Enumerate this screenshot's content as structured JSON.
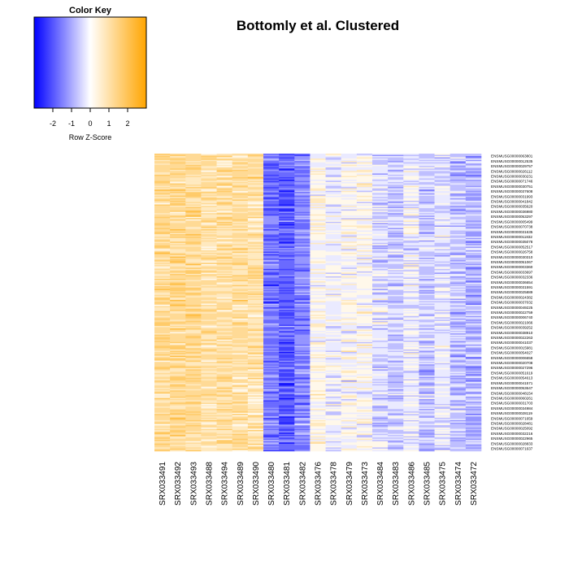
{
  "chart_data": {
    "type": "heatmap",
    "title": "Bottomly et al. Clustered",
    "color_key": {
      "title": "Color Key",
      "xlabel": "Row Z-Score",
      "range": [
        -3,
        3
      ],
      "ticks": [
        -2,
        -1,
        0,
        1,
        2
      ],
      "tick_labels": [
        "-2",
        "-1",
        "0",
        "1",
        "2"
      ],
      "colors": {
        "low": "#0000ff",
        "mid": "#ffffff",
        "high": "#ffa500"
      }
    },
    "columns": [
      "SRX033491",
      "SRX033492",
      "SRX033493",
      "SRX033488",
      "SRX033494",
      "SRX033489",
      "SRX033490",
      "SRX033480",
      "SRX033481",
      "SRX033482",
      "SRX033476",
      "SRX033478",
      "SRX033479",
      "SRX033473",
      "SRX033484",
      "SRX033483",
      "SRX033486",
      "SRX033485",
      "SRX033475",
      "SRX033474",
      "SRX033472"
    ],
    "column_mean_zscores": [
      1.2,
      1.3,
      1.2,
      1.0,
      1.1,
      1.1,
      1.0,
      -1.6,
      -1.9,
      -1.4,
      0.2,
      -0.1,
      0.1,
      0.1,
      -0.4,
      -0.6,
      -0.1,
      -0.6,
      -0.3,
      -0.7,
      -0.9
    ],
    "row_labels": [
      "ENSMUSG00000063801",
      "ENSMUSG00000012535",
      "ENSMUSG00000029757",
      "ENSMUSG00000026112",
      "ENSMUSG00000030231",
      "ENSMUSG00000071746",
      "ENSMUSG00000030751",
      "ENSMUSG00000037608",
      "ENSMUSG00000031993",
      "ENSMUSG00000041842",
      "ENSMUSG00000035620",
      "ENSMUSG00000036980",
      "ENSMUSG00000053297",
      "ENSMUSG00000005499",
      "ENSMUSG00000070738",
      "ENSMUSG00000031635",
      "ENSMUSG00000011832",
      "ENSMUSG00000035078",
      "ENSMUSG00000052517",
      "ENSMUSG00000026758",
      "ENSMUSG00000030310",
      "ENSMUSG00000051067",
      "ENSMUSG00000003360",
      "ENSMUSG00000033697",
      "ENSMUSG00000032336",
      "ENSMUSG00000036654",
      "ENSMUSG00000031591",
      "ENSMUSG00000025889",
      "ENSMUSG00000024382",
      "ENSMUSG00000037032",
      "ENSMUSG00000049225",
      "ENSMUSG00000022759",
      "ENSMUSG00000006740",
      "ENSMUSG00000021066",
      "ENSMUSG00000039252",
      "ENSMUSG00000038910",
      "ENSMUSG00000022263",
      "ENSMUSG00000041037",
      "ENSMUSG00000015981",
      "ENSMUSG00000054027",
      "ENSMUSG00000006658",
      "ENSMUSG00000020708",
      "ENSMUSG00000027296",
      "ENSMUSG00000051619",
      "ENSMUSG00000054613",
      "ENSMUSG00000041571",
      "ENSMUSG00000053647",
      "ENSMUSG00000048154",
      "ENSMUSG00000060261",
      "ENSMUSG00000031703",
      "ENSMUSG00000034984",
      "ENSMUSG00000028119",
      "ENSMUSG00000071659",
      "ENSMUSG00000028481",
      "ENSMUSG00000025092",
      "ENSMUSG00000032216",
      "ENSMUSG00000022965",
      "ENSMUSG00000028833",
      "ENSMUSG00000071637"
    ]
  }
}
